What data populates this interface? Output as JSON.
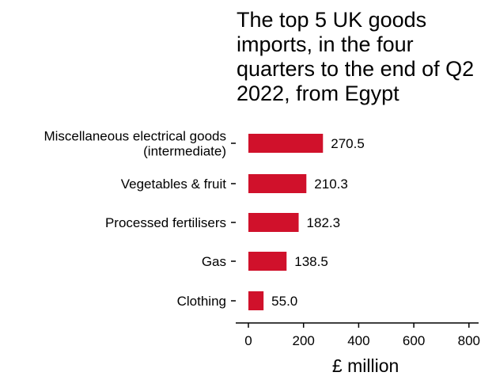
{
  "chart_data": {
    "type": "bar",
    "orientation": "horizontal",
    "title": "The top 5 UK goods imports, in the four quarters to the end of Q2 2022, from Egypt",
    "categories": [
      "Miscellaneous electrical goods (intermediate)",
      "Vegetables & fruit",
      "Processed fertilisers",
      "Gas",
      "Clothing"
    ],
    "category_lines": [
      [
        "Miscellaneous electrical goods",
        "(intermediate)"
      ],
      [
        "Vegetables & fruit"
      ],
      [
        "Processed fertilisers"
      ],
      [
        "Gas"
      ],
      [
        "Clothing"
      ]
    ],
    "values": [
      270.5,
      210.3,
      182.3,
      138.5,
      55.0
    ],
    "value_labels": [
      "270.5",
      "210.3",
      "182.3",
      "138.5",
      "55.0"
    ],
    "xlabel": "£ million",
    "ylabel": "",
    "xlim": [
      0,
      850
    ],
    "xticks": [
      0,
      200,
      400,
      600,
      800
    ],
    "xtick_labels": [
      "0",
      "200",
      "400",
      "600",
      "800"
    ],
    "grid": false,
    "legend": "none",
    "bar_color": "#d0112b"
  }
}
